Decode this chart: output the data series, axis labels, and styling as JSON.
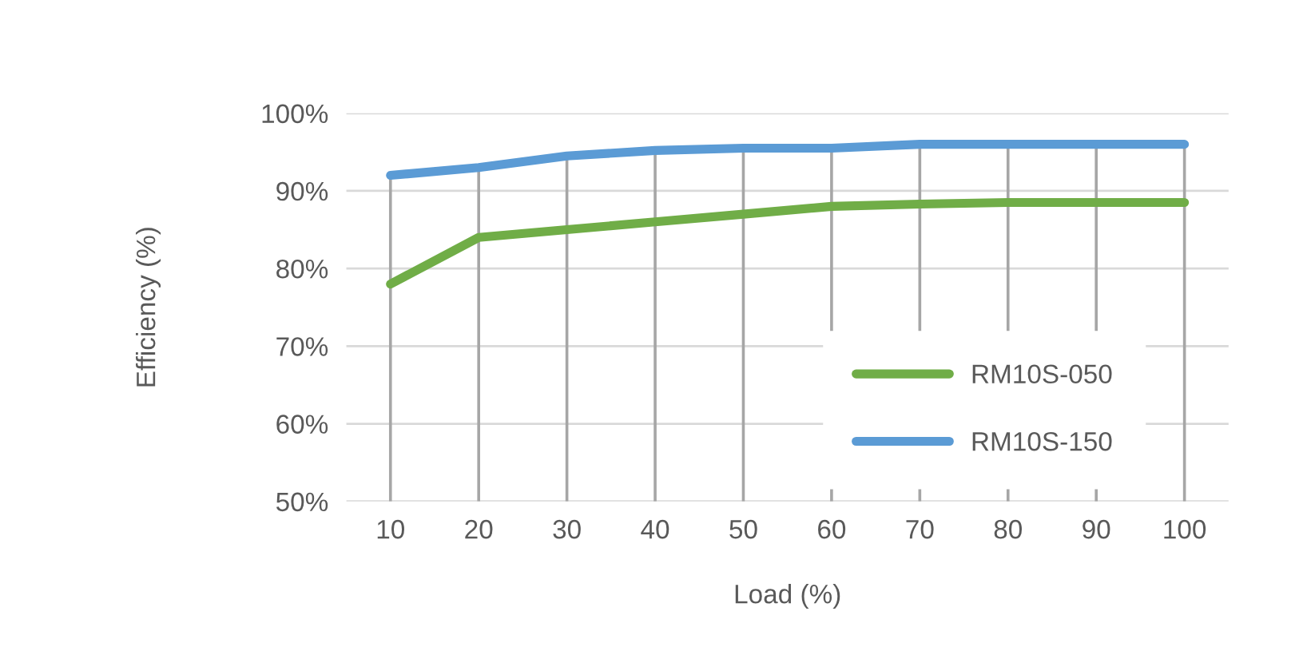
{
  "chart_data": {
    "type": "line",
    "xlabel": "Load (%)",
    "ylabel": "Efficiency (%)",
    "categories": [
      "10",
      "20",
      "30",
      "40",
      "50",
      "60",
      "70",
      "80",
      "90",
      "100"
    ],
    "series": [
      {
        "name": "RM10S-050",
        "color": "#70ad47",
        "values": [
          78,
          84,
          85,
          86,
          87,
          88,
          88.3,
          88.5,
          88.5,
          88.5
        ]
      },
      {
        "name": "RM10S-150",
        "color": "#5b9bd5",
        "values": [
          92,
          93,
          94.5,
          95.2,
          95.5,
          95.5,
          96,
          96,
          96,
          96
        ]
      }
    ],
    "ylim": [
      50,
      100
    ],
    "yticks": [
      {
        "value": 50,
        "label": "50%"
      },
      {
        "value": 60,
        "label": "60%"
      },
      {
        "value": 70,
        "label": "70%"
      },
      {
        "value": 80,
        "label": "80%"
      },
      {
        "value": 90,
        "label": "90%"
      },
      {
        "value": 100,
        "label": "100%"
      }
    ],
    "grid": true,
    "legend": "bottom right",
    "marker": "none",
    "line_style": "solid"
  }
}
